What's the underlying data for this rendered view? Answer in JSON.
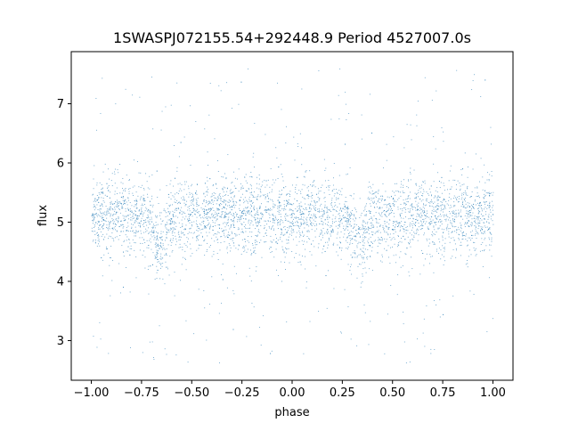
{
  "chart_data": {
    "type": "scatter",
    "title": "1SWASPJ072155.54+292448.9 Period 4527007.0s",
    "xlabel": "phase",
    "ylabel": "flux",
    "xlim": [
      -1.1,
      1.1
    ],
    "ylim": [
      2.33,
      7.88
    ],
    "xticks": [
      -1.0,
      -0.75,
      -0.5,
      -0.25,
      0.0,
      0.25,
      0.5,
      0.75,
      1.0
    ],
    "xtick_labels": [
      "−1.00",
      "−0.75",
      "−0.50",
      "−0.25",
      "0.00",
      "0.25",
      "0.50",
      "0.75",
      "1.00"
    ],
    "yticks": [
      3,
      4,
      5,
      6,
      7
    ],
    "ytick_labels": [
      "3",
      "4",
      "5",
      "6",
      "7"
    ],
    "grid": false,
    "point_color": "#1f77b4",
    "series": [
      {
        "description_of_distribution": "dense band of small points spanning phase -1 to 1, centred near flux 5.1 with typical spread 4.5–5.8; folded repeat at phase offset 1.0; sparse outliers between 2.6 and 7.6",
        "center_flux": 5.1,
        "core_band": [
          4.5,
          5.8
        ],
        "outlier_range": [
          2.6,
          7.6
        ],
        "dip_phases": [
          -0.66,
          0.34
        ],
        "dip_min_flux": 3.6,
        "phase_range": [
          -1.0,
          1.0
        ]
      }
    ]
  }
}
